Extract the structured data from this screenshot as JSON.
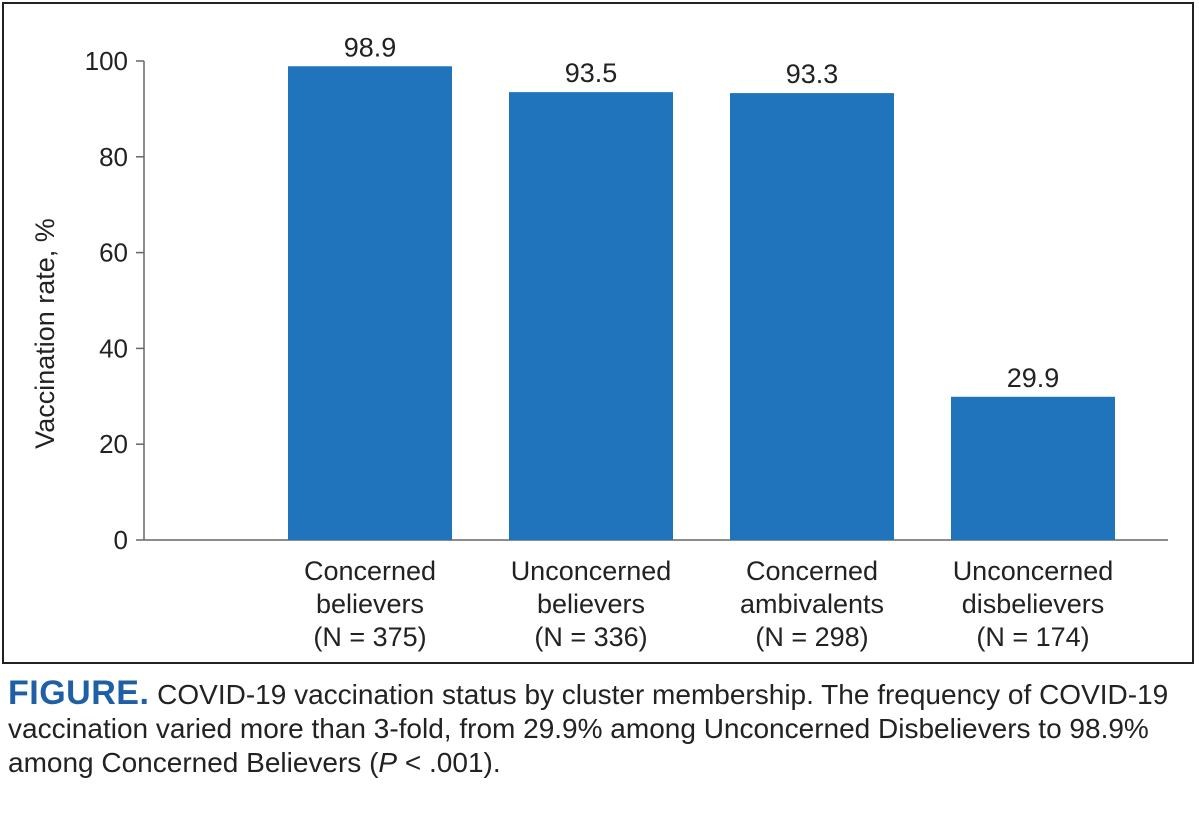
{
  "chart_data": {
    "type": "bar",
    "categories": [
      [
        "Concerned",
        "believers",
        "(N = 375)"
      ],
      [
        "Unconcerned",
        "believers",
        "(N = 336)"
      ],
      [
        "Concerned",
        "ambivalents",
        "(N = 298)"
      ],
      [
        "Unconcerned",
        "disbelievers",
        "(N = 174)"
      ]
    ],
    "values": [
      98.9,
      93.5,
      93.3,
      29.9
    ],
    "data_labels": [
      "98.9",
      "93.5",
      "93.3",
      "29.9"
    ],
    "ylabel": "Vaccination rate, %",
    "ylim": [
      0,
      100
    ],
    "yticks": [
      "0",
      "20",
      "40",
      "60",
      "80",
      "100"
    ],
    "grid": false,
    "bar_color": "#1f74bb"
  },
  "caption": {
    "label": "FIGURE.",
    "text_before_italic": " COVID-19 vaccination status by cluster membership. The frequency of COVID-19 vaccination varied more than 3-fold, from 29.9% among Unconcerned Disbelievers to 98.9% among Concerned Believers (",
    "italic": "P",
    "text_after_italic": " < .001).",
    "label_color": "#1f5fa6"
  }
}
